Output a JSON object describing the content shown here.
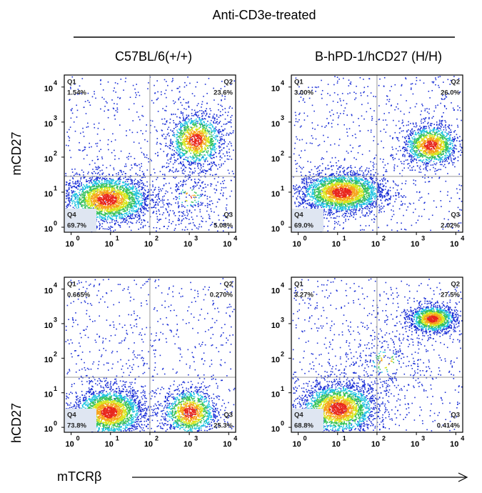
{
  "figure": {
    "title": "Anti-CD3e-treated",
    "columns": [
      "C57BL/6(+/+)",
      "B-hPD-1/hCD27 (H/H)"
    ],
    "rows": [
      "mCD27",
      "hCD27"
    ],
    "x_label": "mTCRβ"
  },
  "chart_data": [
    {
      "type": "flow-density",
      "log_scale": true,
      "categories": [
        "Q1",
        "Q2",
        "Q3",
        "Q4"
      ],
      "values": [
        1.54,
        23.6,
        5.08,
        69.7
      ],
      "value_labels": [
        "1.54%",
        "23.6%",
        "5.08%",
        "69.7%"
      ],
      "xlim": [
        0.67,
        15000
      ],
      "ylim": [
        0.72,
        22000
      ],
      "xticks": [
        {
          "value": 1,
          "label": "10",
          "exponent": "0"
        },
        {
          "value": 10,
          "label": "10",
          "exponent": "1"
        },
        {
          "value": 100,
          "label": "10",
          "exponent": "2"
        },
        {
          "value": 1000,
          "label": "10",
          "exponent": "3"
        },
        {
          "value": 10000,
          "label": "10",
          "exponent": "4"
        }
      ],
      "yticks": [
        {
          "value": 1,
          "label": "10",
          "exponent": "0"
        },
        {
          "value": 10,
          "label": "10",
          "exponent": "1"
        },
        {
          "value": 100,
          "label": "10",
          "exponent": "2"
        },
        {
          "value": 1000,
          "label": "10",
          "exponent": "3"
        },
        {
          "value": 10000,
          "label": "10",
          "exponent": "4"
        }
      ]
    },
    {
      "type": "flow-density",
      "log_scale": true,
      "categories": [
        "Q1",
        "Q2",
        "Q3",
        "Q4"
      ],
      "values": [
        3.0,
        26.0,
        2.02,
        69.0
      ],
      "value_labels": [
        "3.00%",
        "26.0%",
        "2.02%",
        "69.0%"
      ],
      "xlim": [
        0.67,
        15000
      ],
      "ylim": [
        0.72,
        22000
      ],
      "xticks": [
        {
          "value": 1,
          "label": "10",
          "exponent": "0"
        },
        {
          "value": 10,
          "label": "10",
          "exponent": "1"
        },
        {
          "value": 100,
          "label": "10",
          "exponent": "2"
        },
        {
          "value": 1000,
          "label": "10",
          "exponent": "3"
        },
        {
          "value": 10000,
          "label": "10",
          "exponent": "4"
        }
      ],
      "yticks": [
        {
          "value": 1,
          "label": "10",
          "exponent": "0"
        },
        {
          "value": 10,
          "label": "10",
          "exponent": "1"
        },
        {
          "value": 100,
          "label": "10",
          "exponent": "2"
        },
        {
          "value": 1000,
          "label": "10",
          "exponent": "3"
        },
        {
          "value": 10000,
          "label": "10",
          "exponent": "4"
        }
      ]
    },
    {
      "type": "flow-density",
      "log_scale": true,
      "categories": [
        "Q1",
        "Q2",
        "Q3",
        "Q4"
      ],
      "values": [
        0.665,
        0.27,
        25.3,
        73.8
      ],
      "value_labels": [
        "0.665%",
        "0.270%",
        "25.3%",
        "73.8%"
      ],
      "xlim": [
        0.67,
        15000
      ],
      "ylim": [
        0.72,
        22000
      ],
      "xticks": [
        {
          "value": 1,
          "label": "10",
          "exponent": "0"
        },
        {
          "value": 10,
          "label": "10",
          "exponent": "1"
        },
        {
          "value": 100,
          "label": "10",
          "exponent": "2"
        },
        {
          "value": 1000,
          "label": "10",
          "exponent": "3"
        },
        {
          "value": 10000,
          "label": "10",
          "exponent": "4"
        }
      ],
      "yticks": [
        {
          "value": 1,
          "label": "10",
          "exponent": "0"
        },
        {
          "value": 10,
          "label": "10",
          "exponent": "1"
        },
        {
          "value": 100,
          "label": "10",
          "exponent": "2"
        },
        {
          "value": 1000,
          "label": "10",
          "exponent": "3"
        },
        {
          "value": 10000,
          "label": "10",
          "exponent": "4"
        }
      ]
    },
    {
      "type": "flow-density",
      "log_scale": true,
      "categories": [
        "Q1",
        "Q2",
        "Q3",
        "Q4"
      ],
      "values": [
        3.27,
        27.5,
        0.414,
        68.8
      ],
      "value_labels": [
        "3.27%",
        "27.5%",
        "0.414%",
        "68.8%"
      ],
      "xlim": [
        0.67,
        15000
      ],
      "ylim": [
        0.72,
        22000
      ],
      "xticks": [
        {
          "value": 1,
          "label": "10",
          "exponent": "0"
        },
        {
          "value": 10,
          "label": "10",
          "exponent": "1"
        },
        {
          "value": 100,
          "label": "10",
          "exponent": "2"
        },
        {
          "value": 1000,
          "label": "10",
          "exponent": "3"
        },
        {
          "value": 10000,
          "label": "10",
          "exponent": "4"
        }
      ],
      "yticks": [
        {
          "value": 1,
          "label": "10",
          "exponent": "0"
        },
        {
          "value": 10,
          "label": "10",
          "exponent": "1"
        },
        {
          "value": 100,
          "label": "10",
          "exponent": "2"
        },
        {
          "value": 1000,
          "label": "10",
          "exponent": "3"
        },
        {
          "value": 10000,
          "label": "10",
          "exponent": "4"
        }
      ]
    }
  ]
}
